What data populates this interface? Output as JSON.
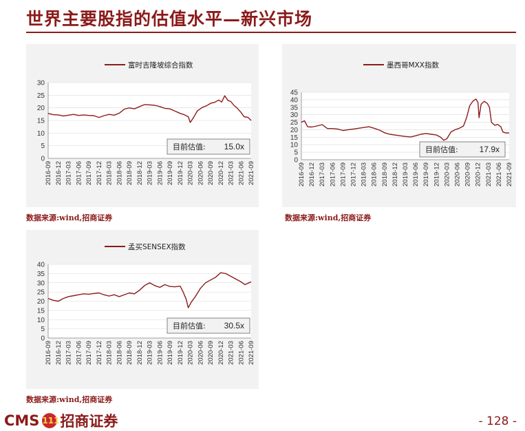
{
  "page": {
    "title": "世界主要股指的估值水平—新兴市场",
    "page_number": "- 128 -",
    "logo_latin": "CMS",
    "logo_cn": "招商证券",
    "logo_mark": "111",
    "accent": "#8B1A1A"
  },
  "chart_data": [
    {
      "type": "line",
      "legend": "富时吉隆坡综合指数",
      "annotation_label": "目前估值:",
      "annotation_value": "15.0x",
      "source": "数据来源:wind,招商证券",
      "ylim": [
        0,
        30
      ],
      "yticks": [
        0,
        5,
        10,
        15,
        20,
        25,
        30
      ],
      "xticks": [
        "2016-09",
        "2016-12",
        "2017-03",
        "2017-06",
        "2017-09",
        "2017-12",
        "2018-03",
        "2018-06",
        "2018-09",
        "2018-12",
        "2019-03",
        "2019-06",
        "2019-09",
        "2019-12",
        "2020-03",
        "2020-06",
        "2020-09",
        "2020-12",
        "2021-03",
        "2021-06",
        "2021-09"
      ],
      "line_color": "#8B1A1A",
      "series": [
        {
          "x": 0.0,
          "y": 17.8
        },
        {
          "x": 0.5,
          "y": 17.3
        },
        {
          "x": 1.0,
          "y": 17.2
        },
        {
          "x": 1.5,
          "y": 16.8
        },
        {
          "x": 2.0,
          "y": 17.1
        },
        {
          "x": 2.5,
          "y": 17.4
        },
        {
          "x": 3.0,
          "y": 17.0
        },
        {
          "x": 3.5,
          "y": 17.2
        },
        {
          "x": 4.0,
          "y": 17.0
        },
        {
          "x": 4.5,
          "y": 16.9
        },
        {
          "x": 5.0,
          "y": 16.2
        },
        {
          "x": 5.5,
          "y": 16.9
        },
        {
          "x": 6.0,
          "y": 17.4
        },
        {
          "x": 6.5,
          "y": 17.1
        },
        {
          "x": 7.0,
          "y": 17.9
        },
        {
          "x": 7.5,
          "y": 19.5
        },
        {
          "x": 8.0,
          "y": 20.0
        },
        {
          "x": 8.5,
          "y": 19.6
        },
        {
          "x": 9.0,
          "y": 20.5
        },
        {
          "x": 9.5,
          "y": 21.3
        },
        {
          "x": 10.0,
          "y": 21.2
        },
        {
          "x": 10.5,
          "y": 21.0
        },
        {
          "x": 11.0,
          "y": 20.5
        },
        {
          "x": 11.5,
          "y": 19.8
        },
        {
          "x": 12.0,
          "y": 19.6
        },
        {
          "x": 12.5,
          "y": 18.7
        },
        {
          "x": 13.0,
          "y": 17.8
        },
        {
          "x": 13.4,
          "y": 17.3
        },
        {
          "x": 13.8,
          "y": 16.5
        },
        {
          "x": 14.0,
          "y": 14.2
        },
        {
          "x": 14.3,
          "y": 16.0
        },
        {
          "x": 14.7,
          "y": 18.8
        },
        {
          "x": 15.2,
          "y": 20.2
        },
        {
          "x": 15.6,
          "y": 20.8
        },
        {
          "x": 16.0,
          "y": 21.8
        },
        {
          "x": 16.4,
          "y": 22.2
        },
        {
          "x": 16.8,
          "y": 23.1
        },
        {
          "x": 17.1,
          "y": 22.3
        },
        {
          "x": 17.4,
          "y": 24.8
        },
        {
          "x": 17.7,
          "y": 23.0
        },
        {
          "x": 18.0,
          "y": 22.5
        },
        {
          "x": 18.3,
          "y": 21.0
        },
        {
          "x": 18.6,
          "y": 20.0
        },
        {
          "x": 19.0,
          "y": 18.2
        },
        {
          "x": 19.3,
          "y": 16.5
        },
        {
          "x": 19.7,
          "y": 16.2
        },
        {
          "x": 20.0,
          "y": 15.0
        }
      ]
    },
    {
      "type": "line",
      "legend": "墨西哥MXX指数",
      "annotation_label": "目前估值:",
      "annotation_value": "17.9x",
      "source": "数据来源:wind,招商证券",
      "ylim": [
        0,
        45
      ],
      "yticks": [
        0,
        5,
        10,
        15,
        20,
        25,
        30,
        35,
        40,
        45
      ],
      "xticks": [
        "2016-09",
        "2016-12",
        "2017-03",
        "2017-06",
        "2017-09",
        "2017-12",
        "2018-03",
        "2018-06",
        "2018-09",
        "2018-12",
        "2019-03",
        "2019-06",
        "2019-09",
        "2019-12",
        "2020-03",
        "2020-06",
        "2020-09",
        "2020-12",
        "2021-03",
        "2021-06",
        "2021-09"
      ],
      "line_color": "#8B1A1A",
      "series": [
        {
          "x": 0.0,
          "y": 25.0
        },
        {
          "x": 0.3,
          "y": 26.0
        },
        {
          "x": 0.6,
          "y": 22.0
        },
        {
          "x": 1.0,
          "y": 21.8
        },
        {
          "x": 1.5,
          "y": 22.5
        },
        {
          "x": 2.0,
          "y": 23.4
        },
        {
          "x": 2.5,
          "y": 20.8
        },
        {
          "x": 3.0,
          "y": 20.8
        },
        {
          "x": 3.5,
          "y": 20.5
        },
        {
          "x": 4.0,
          "y": 19.5
        },
        {
          "x": 4.5,
          "y": 20.0
        },
        {
          "x": 5.0,
          "y": 20.5
        },
        {
          "x": 5.5,
          "y": 21.0
        },
        {
          "x": 6.0,
          "y": 21.5
        },
        {
          "x": 6.5,
          "y": 22.0
        },
        {
          "x": 7.0,
          "y": 21.0
        },
        {
          "x": 7.5,
          "y": 19.8
        },
        {
          "x": 8.0,
          "y": 18.0
        },
        {
          "x": 8.5,
          "y": 17.0
        },
        {
          "x": 9.0,
          "y": 16.5
        },
        {
          "x": 9.5,
          "y": 16.0
        },
        {
          "x": 10.0,
          "y": 15.5
        },
        {
          "x": 10.5,
          "y": 15.2
        },
        {
          "x": 11.0,
          "y": 16.0
        },
        {
          "x": 11.5,
          "y": 17.0
        },
        {
          "x": 12.0,
          "y": 17.5
        },
        {
          "x": 12.5,
          "y": 17.0
        },
        {
          "x": 13.0,
          "y": 16.5
        },
        {
          "x": 13.4,
          "y": 15.0
        },
        {
          "x": 13.7,
          "y": 13.0
        },
        {
          "x": 14.0,
          "y": 14.0
        },
        {
          "x": 14.4,
          "y": 18.5
        },
        {
          "x": 14.8,
          "y": 20.0
        },
        {
          "x": 15.2,
          "y": 21.0
        },
        {
          "x": 15.6,
          "y": 22.5
        },
        {
          "x": 15.9,
          "y": 28.0
        },
        {
          "x": 16.2,
          "y": 36.0
        },
        {
          "x": 16.5,
          "y": 39.0
        },
        {
          "x": 16.8,
          "y": 40.5
        },
        {
          "x": 17.0,
          "y": 38.0
        },
        {
          "x": 17.1,
          "y": 28.0
        },
        {
          "x": 17.3,
          "y": 37.0
        },
        {
          "x": 17.6,
          "y": 39.0
        },
        {
          "x": 17.9,
          "y": 37.5
        },
        {
          "x": 18.1,
          "y": 35.0
        },
        {
          "x": 18.3,
          "y": 25.0
        },
        {
          "x": 18.6,
          "y": 23.0
        },
        {
          "x": 18.9,
          "y": 23.5
        },
        {
          "x": 19.2,
          "y": 22.0
        },
        {
          "x": 19.4,
          "y": 18.5
        },
        {
          "x": 19.7,
          "y": 17.8
        },
        {
          "x": 20.0,
          "y": 17.9
        }
      ]
    },
    {
      "type": "line",
      "legend": "孟买SENSEX指数",
      "annotation_label": "目前估值:",
      "annotation_value": "30.5x",
      "source": "数据来源:wind,招商证券",
      "ylim": [
        0,
        40
      ],
      "yticks": [
        0,
        5,
        10,
        15,
        20,
        25,
        30,
        35,
        40
      ],
      "xticks": [
        "2016-09",
        "2016-12",
        "2017-03",
        "2017-06",
        "2017-09",
        "2017-12",
        "2018-03",
        "2018-06",
        "2018-09",
        "2018-12",
        "2019-03",
        "2019-06",
        "2019-09",
        "2019-12",
        "2020-03",
        "2020-06",
        "2020-09",
        "2020-12",
        "2021-03",
        "2021-06",
        "2021-09"
      ],
      "line_color": "#8B1A1A",
      "series": [
        {
          "x": 0.0,
          "y": 21.5
        },
        {
          "x": 0.5,
          "y": 20.5
        },
        {
          "x": 1.0,
          "y": 20.0
        },
        {
          "x": 1.5,
          "y": 21.5
        },
        {
          "x": 2.0,
          "y": 22.5
        },
        {
          "x": 2.5,
          "y": 23.0
        },
        {
          "x": 3.0,
          "y": 23.5
        },
        {
          "x": 3.5,
          "y": 24.0
        },
        {
          "x": 4.0,
          "y": 23.8
        },
        {
          "x": 4.5,
          "y": 24.2
        },
        {
          "x": 5.0,
          "y": 24.5
        },
        {
          "x": 5.5,
          "y": 23.5
        },
        {
          "x": 6.0,
          "y": 22.8
        },
        {
          "x": 6.5,
          "y": 23.5
        },
        {
          "x": 7.0,
          "y": 22.5
        },
        {
          "x": 7.5,
          "y": 23.5
        },
        {
          "x": 8.0,
          "y": 24.5
        },
        {
          "x": 8.5,
          "y": 24.0
        },
        {
          "x": 9.0,
          "y": 26.0
        },
        {
          "x": 9.5,
          "y": 28.5
        },
        {
          "x": 10.0,
          "y": 30.0
        },
        {
          "x": 10.5,
          "y": 28.5
        },
        {
          "x": 11.0,
          "y": 27.5
        },
        {
          "x": 11.5,
          "y": 29.0
        },
        {
          "x": 12.0,
          "y": 28.0
        },
        {
          "x": 12.5,
          "y": 27.8
        },
        {
          "x": 13.0,
          "y": 28.2
        },
        {
          "x": 13.3,
          "y": 25.0
        },
        {
          "x": 13.6,
          "y": 21.0
        },
        {
          "x": 13.8,
          "y": 16.5
        },
        {
          "x": 14.1,
          "y": 19.5
        },
        {
          "x": 14.5,
          "y": 22.5
        },
        {
          "x": 15.0,
          "y": 27.0
        },
        {
          "x": 15.5,
          "y": 30.0
        },
        {
          "x": 16.0,
          "y": 31.5
        },
        {
          "x": 16.5,
          "y": 33.0
        },
        {
          "x": 17.0,
          "y": 35.5
        },
        {
          "x": 17.5,
          "y": 35.0
        },
        {
          "x": 18.0,
          "y": 33.5
        },
        {
          "x": 18.5,
          "y": 32.0
        },
        {
          "x": 19.0,
          "y": 30.5
        },
        {
          "x": 19.4,
          "y": 29.0
        },
        {
          "x": 19.7,
          "y": 29.8
        },
        {
          "x": 20.0,
          "y": 30.5
        }
      ]
    }
  ]
}
